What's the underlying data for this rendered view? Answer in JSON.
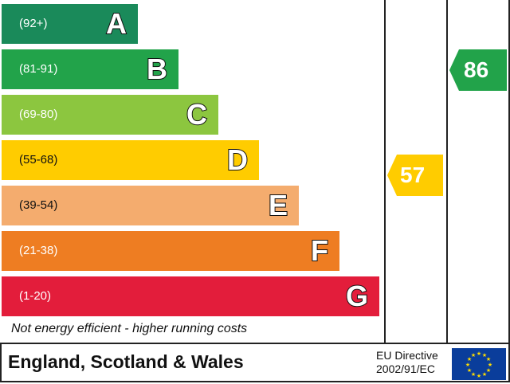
{
  "bands": [
    {
      "range": "(92+)",
      "letter": "A",
      "color": "#1a8a5a"
    },
    {
      "range": "(81-91)",
      "letter": "B",
      "color": "#22a34a"
    },
    {
      "range": "(69-80)",
      "letter": "C",
      "color": "#8cc63f"
    },
    {
      "range": "(55-68)",
      "letter": "D",
      "color": "#ffcc00"
    },
    {
      "range": "(39-54)",
      "letter": "E",
      "color": "#f4ac6e"
    },
    {
      "range": "(21-38)",
      "letter": "F",
      "color": "#ee7d22"
    },
    {
      "range": "(1-20)",
      "letter": "G",
      "color": "#e31d3b"
    }
  ],
  "current": {
    "value": "57",
    "color": "#ffcc00"
  },
  "potential": {
    "value": "86",
    "color": "#22a34a"
  },
  "footer": {
    "note": "Not energy efficient - higher running costs",
    "country": "England, Scotland & Wales",
    "directive_line1": "EU Directive",
    "directive_line2": "2002/91/EC"
  }
}
